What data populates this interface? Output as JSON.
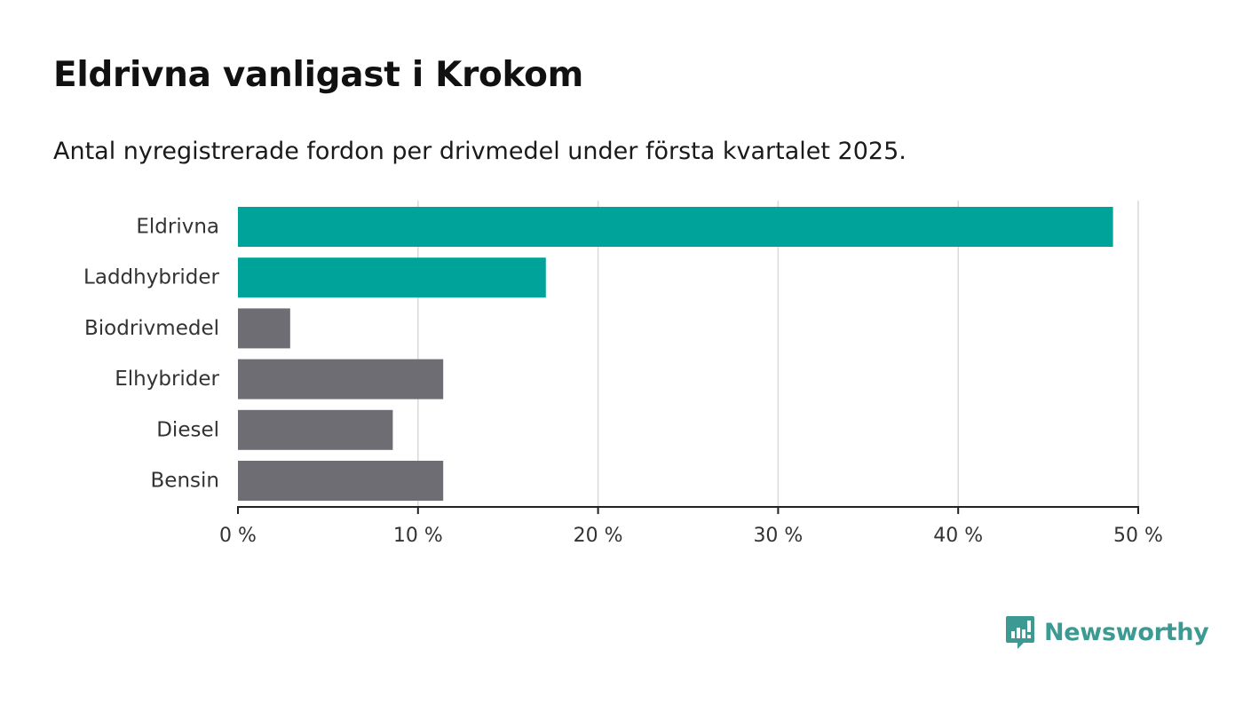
{
  "header": {
    "title": "Eldrivna vanligast i Krokom",
    "subtitle": "Antal nyregistrerade fordon per drivmedel under första kvartalet 2025."
  },
  "chart_data": {
    "type": "bar",
    "orientation": "horizontal",
    "categories": [
      "Eldrivna",
      "Laddhybrider",
      "Biodrivmedel",
      "Elhybrider",
      "Diesel",
      "Bensin"
    ],
    "values": [
      48.6,
      17.1,
      2.9,
      11.4,
      8.6,
      11.4
    ],
    "colors": [
      "#00a39a",
      "#00a39a",
      "#6e6d73",
      "#6e6d73",
      "#6e6d73",
      "#6e6d73"
    ],
    "xlim": [
      0,
      50
    ],
    "xticks": [
      0,
      10,
      20,
      30,
      40,
      50
    ],
    "xtick_labels": [
      "0 %",
      "10 %",
      "20 %",
      "30 %",
      "40 %",
      "50 %"
    ],
    "grid": "vertical",
    "xlabel": "",
    "ylabel": ""
  },
  "brand": {
    "name": "Newsworthy",
    "logo_icon": "newsworthy-logo-icon",
    "color": "#3d9a92"
  }
}
